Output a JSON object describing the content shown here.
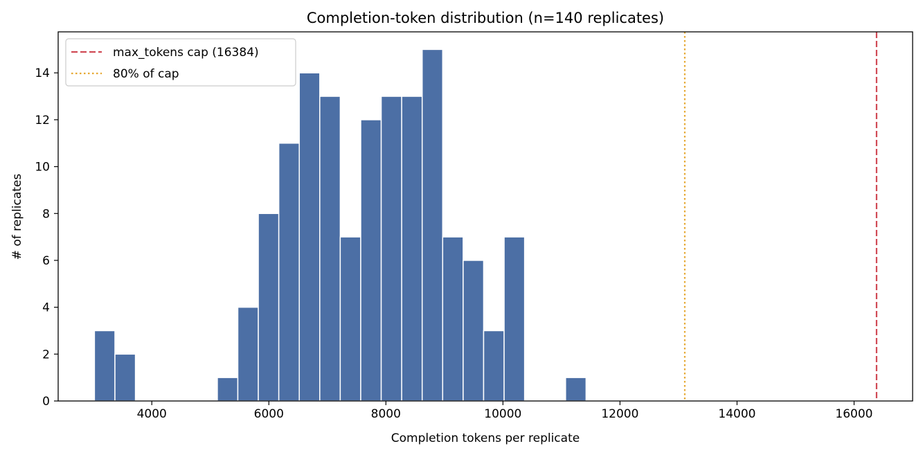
{
  "chart_data": {
    "type": "bar",
    "title": "Completion-token distribution (n=140 replicates)",
    "xlabel": "Completion tokens per replicate",
    "ylabel": "# of replicates",
    "xlim": [
      2400,
      17000
    ],
    "ylim": [
      0,
      15.75
    ],
    "x_ticks": [
      4000,
      6000,
      8000,
      10000,
      12000,
      14000,
      16000
    ],
    "y_ticks": [
      0,
      2,
      4,
      6,
      8,
      10,
      12,
      14
    ],
    "bar_color": "#4c6fa5",
    "bins": [
      {
        "start": 3020,
        "end": 3370,
        "count": 3
      },
      {
        "start": 3370,
        "end": 3720,
        "count": 2
      },
      {
        "start": 5120,
        "end": 5470,
        "count": 1
      },
      {
        "start": 5470,
        "end": 5820,
        "count": 4
      },
      {
        "start": 5820,
        "end": 6170,
        "count": 8
      },
      {
        "start": 6170,
        "end": 6520,
        "count": 11
      },
      {
        "start": 6520,
        "end": 6870,
        "count": 14
      },
      {
        "start": 6870,
        "end": 7220,
        "count": 13
      },
      {
        "start": 7220,
        "end": 7570,
        "count": 7
      },
      {
        "start": 7570,
        "end": 7920,
        "count": 12
      },
      {
        "start": 7920,
        "end": 8270,
        "count": 13
      },
      {
        "start": 8270,
        "end": 8620,
        "count": 13
      },
      {
        "start": 8620,
        "end": 8970,
        "count": 15
      },
      {
        "start": 8970,
        "end": 9320,
        "count": 7
      },
      {
        "start": 9320,
        "end": 9670,
        "count": 6
      },
      {
        "start": 9670,
        "end": 10020,
        "count": 3
      },
      {
        "start": 10020,
        "end": 10370,
        "count": 7
      },
      {
        "start": 11070,
        "end": 11420,
        "count": 1
      }
    ],
    "reference_lines": [
      {
        "label": "max_tokens cap (16384)",
        "x": 16384,
        "color": "#d04a55",
        "style": "dashed"
      },
      {
        "label": "80% of cap",
        "x": 13107,
        "color": "#e6a832",
        "style": "dotted"
      }
    ],
    "legend_position": "upper-left",
    "grid": false
  }
}
